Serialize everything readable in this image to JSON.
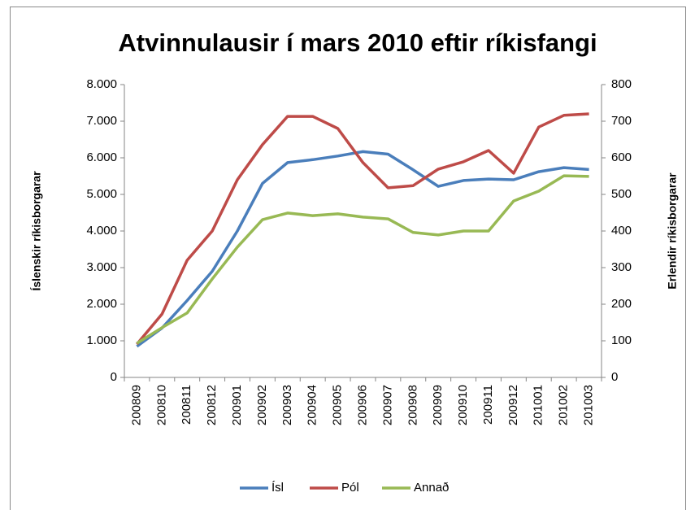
{
  "chart_data": {
    "type": "line",
    "title": "Atvinnulausir í mars 2010 eftir ríkisfangi",
    "y_label": "Íslenskir ríkisborgarar",
    "y2_label": "Erlendir ríkisborgarar",
    "categories": [
      "200809",
      "200810",
      "200811",
      "200812",
      "200901",
      "200902",
      "200903",
      "200904",
      "200905",
      "200906",
      "200907",
      "200908",
      "200909",
      "200910",
      "200911",
      "200912",
      "201001",
      "201002",
      "201003"
    ],
    "series": [
      {
        "name": "Ísl",
        "color": "#4a7ebb",
        "values": [
          850,
          1350,
          2100,
          2900,
          4000,
          5300,
          5870,
          5950,
          6050,
          6170,
          6100,
          5670,
          5220,
          5380,
          5420,
          5400,
          5620,
          5730,
          5680
        ]
      },
      {
        "name": "Pól",
        "color": "#be4b48",
        "axis": "y2",
        "values": [
          91,
          173,
          320,
          400,
          540,
          636,
          713,
          713,
          680,
          587,
          518,
          524,
          569,
          589,
          620,
          558,
          684,
          716,
          720
        ]
      },
      {
        "name": "Annað",
        "color": "#98b954",
        "axis": "y2",
        "values": [
          93,
          136,
          176,
          269,
          356,
          431,
          449,
          442,
          447,
          438,
          433,
          396,
          389,
          400,
          400,
          482,
          509,
          551,
          549
        ]
      }
    ],
    "ylim": [
      0,
      8000
    ],
    "yticks": [
      0,
      {
        "value": 1000,
        "label": "1.000"
      },
      {
        "value": 2000,
        "label": "2.000"
      },
      {
        "value": 3000,
        "label": "3.000"
      },
      {
        "value": 4000,
        "label": "4.000"
      },
      {
        "value": 5000,
        "label": "5.000"
      },
      {
        "value": 6000,
        "label": "6.000"
      },
      {
        "value": 7000,
        "label": "7.000"
      },
      {
        "value": 8000,
        "label": "8.000"
      }
    ],
    "y2lim": [
      0,
      800
    ],
    "y2ticks": [
      0,
      100,
      200,
      300,
      400,
      500,
      600,
      700,
      800
    ],
    "grid": false,
    "legend": "bottom"
  }
}
